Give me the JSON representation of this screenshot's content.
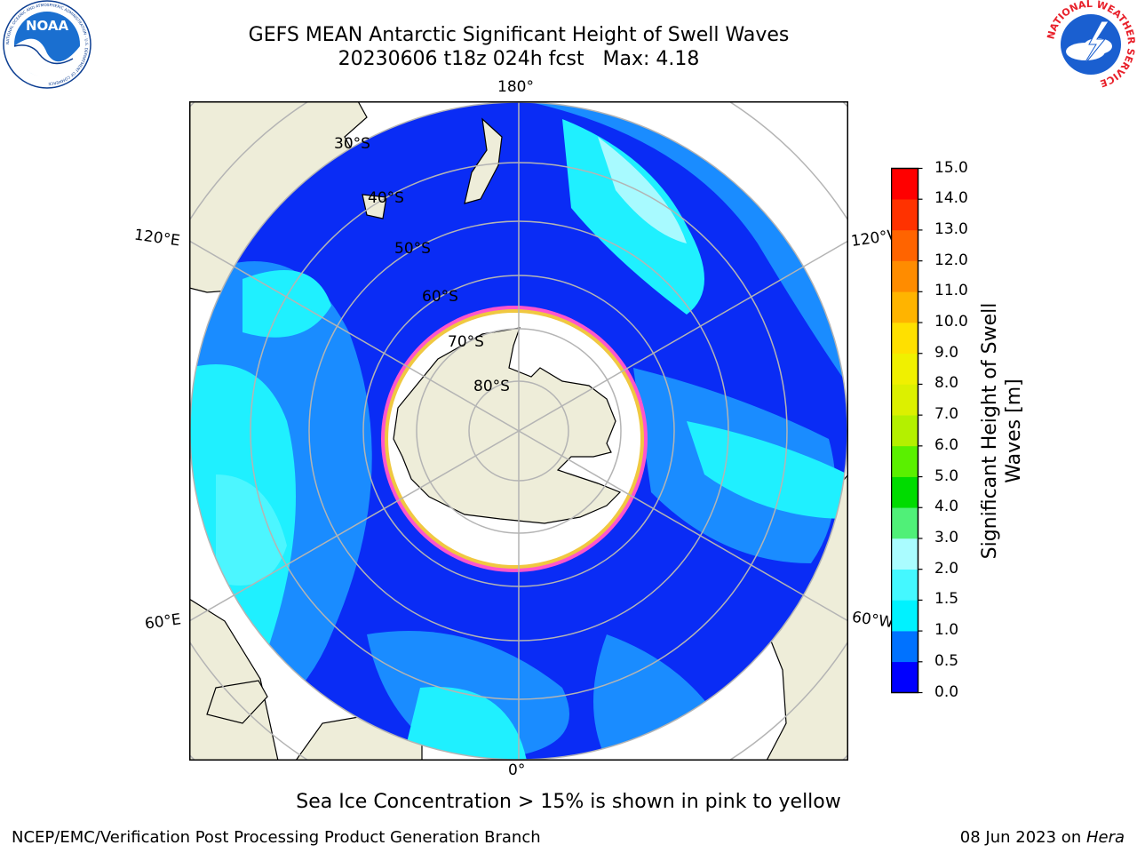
{
  "header": {
    "title_line1": "GEFS MEAN Antarctic Significant Height of Swell Waves",
    "title_line2": "20230606 t18z 024h fcst   Max: 4.18"
  },
  "logos": {
    "noara_text": "NOAA",
    "noaa_ring_text": "NATIONAL OCEANIC AND ATMOSPHERIC ADMINISTRATION · U.S. DEPARTMENT OF COMMERCE",
    "nws_ring_text": "NATIONAL WEATHER SERVICE"
  },
  "map": {
    "projection": "south-polar-stereographic",
    "longitude_labels": {
      "top": "180°",
      "bottom": "0°",
      "upper_left": "120°E",
      "upper_right": "120°W",
      "lower_left": "60°E",
      "lower_right": "60°W"
    },
    "latitude_labels": [
      "30°S",
      "40°S",
      "50°S",
      "60°S",
      "70°S",
      "80°S"
    ],
    "colors": {
      "land": "#eeedd9",
      "ice": "#ffffff",
      "ice_edge": "#ff55cc",
      "ice_core": "#f0c840",
      "grid": "#b4b4b4"
    }
  },
  "colorbar": {
    "title_line1": "Significant Height of Swell",
    "title_line2": "Waves [m]",
    "ticks": [
      "0.0",
      "0.5",
      "1.0",
      "1.5",
      "2.0",
      "3.0",
      "4.0",
      "5.0",
      "6.0",
      "7.0",
      "8.0",
      "9.0",
      "10.0",
      "11.0",
      "12.0",
      "13.0",
      "14.0",
      "15.0"
    ],
    "colors": [
      "#0000ff",
      "#0072ff",
      "#00f2ff",
      "#44f8ff",
      "#aafcff",
      "#50f078",
      "#00dc00",
      "#5af000",
      "#b4f000",
      "#dcf000",
      "#f0f000",
      "#ffe000",
      "#ffb400",
      "#ff8c00",
      "#ff6400",
      "#ff3200",
      "#ff0000"
    ]
  },
  "note": "Sea Ice Concentration > 15% is shown in pink to yellow",
  "footer": {
    "left": "NCEP/EMC/Verification Post Processing Product Generation Branch",
    "right_prefix": "08 Jun 2023 on ",
    "right_host": "Hera"
  }
}
